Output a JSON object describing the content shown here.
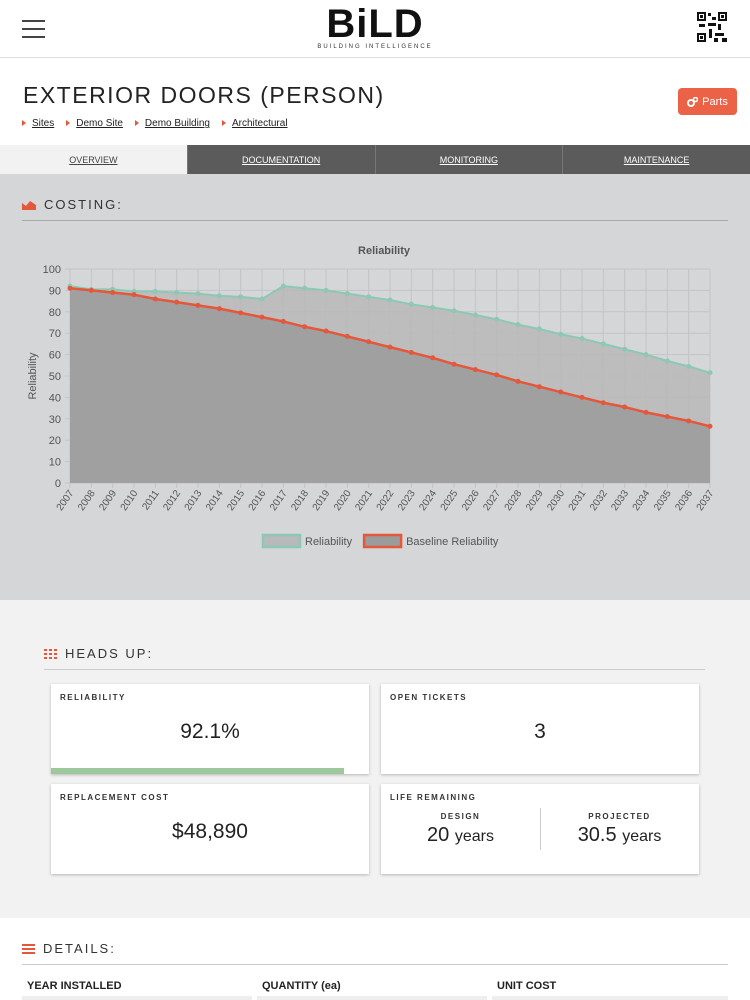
{
  "header": {
    "logo": "BiLD",
    "logo_tagline": "BUILDING INTELLIGENCE"
  },
  "page": {
    "title": "EXTERIOR DOORS (PERSON)",
    "button": "Parts",
    "breadcrumbs": [
      "Sites",
      "Demo Site",
      "Demo Building",
      "Architectural"
    ]
  },
  "tabs": [
    "OVERVIEW",
    "DOCUMENTATION",
    "MONITORING",
    "MAINTENANCE"
  ],
  "costing": {
    "heading": "COSTING:"
  },
  "chart_data": {
    "type": "line",
    "title": "Reliability",
    "y_label": "Reliability",
    "categories": [
      "2007",
      "2008",
      "2009",
      "2010",
      "2011",
      "2012",
      "2013",
      "2014",
      "2015",
      "2016",
      "2017",
      "2018",
      "2019",
      "2020",
      "2021",
      "2022",
      "2023",
      "2024",
      "2025",
      "2026",
      "2027",
      "2028",
      "2029",
      "2030",
      "2031",
      "2032",
      "2033",
      "2034",
      "2035",
      "2036",
      "2037"
    ],
    "series": [
      {
        "name": "Reliability",
        "color": "#8cc8b3",
        "fill": "#b8b9ba",
        "values": [
          92,
          90.5,
          90.5,
          89.5,
          89.5,
          89,
          88.5,
          87.5,
          87,
          86,
          92,
          91,
          90,
          88.5,
          87,
          85.5,
          83.5,
          82,
          80.5,
          78.5,
          76.5,
          74,
          72,
          69.5,
          67.5,
          65,
          62.5,
          60,
          57,
          54.5,
          51.5
        ]
      },
      {
        "name": "Baseline Reliability",
        "color": "#e4573a",
        "fill": "#9b9b9c",
        "values": [
          91,
          90,
          89,
          88,
          86,
          84.5,
          83,
          81.5,
          79.5,
          77.5,
          75.5,
          73,
          71,
          68.5,
          66,
          63.5,
          61,
          58.5,
          55.5,
          53,
          50.5,
          47.5,
          45,
          42.5,
          40,
          37.5,
          35.5,
          33,
          31,
          29,
          26.5
        ]
      }
    ],
    "ylim": [
      0,
      100
    ],
    "yticks": [
      0,
      10,
      20,
      30,
      40,
      50,
      60,
      70,
      80,
      90,
      100
    ],
    "grid": true
  },
  "heads_up": {
    "heading": "HEADS UP:",
    "reliability": {
      "label": "RELIABILITY",
      "value": 92.1,
      "value_label": "92.1%"
    },
    "open_tickets": {
      "label": "OPEN TICKETS",
      "value": "3"
    },
    "replacement_cost": {
      "label": "REPLACEMENT COST",
      "value": "$48,890"
    },
    "life_remaining": {
      "label": "LIFE REMAINING",
      "design": {
        "label": "DESIGN",
        "value": "20",
        "unit": "years"
      },
      "projected": {
        "label": "PROJECTED",
        "value": "30.5",
        "unit": "years"
      }
    }
  },
  "details": {
    "heading": "DETAILS:",
    "columns": [
      "YEAR INSTALLED",
      "QUANTITY (ea)",
      "UNIT COST"
    ]
  }
}
